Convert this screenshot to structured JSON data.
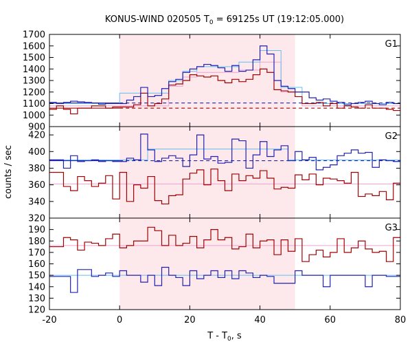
{
  "chart_data": {
    "type": "line",
    "title_main": "KONUS-WIND 020505 T",
    "title_sub": "0",
    "title_rest": " = 69125s UT (19:12:05.000)",
    "xlabel_main": "T - T",
    "xlabel_sub": "0",
    "xlabel_rest": ", s",
    "ylabel": "counts / sec",
    "xlim": [
      -20,
      80
    ],
    "xticks": [
      "-20",
      "0",
      "20",
      "40",
      "60",
      "80"
    ],
    "highlight_x": [
      0,
      50
    ],
    "colors": {
      "red": "#a00000",
      "blue": "#2020b0",
      "cyan": "#60c0f0",
      "pink": "#f0a0d0",
      "shade": "#fde8ec"
    },
    "panels": [
      {
        "label": "G1",
        "ylim": [
          900,
          1700
        ],
        "yticks": [
          "900",
          "1000",
          "1100",
          "1200",
          "1300",
          "1400",
          "1500",
          "1600",
          "1700"
        ],
        "bin_edges": [
          -20,
          -18,
          -16,
          -14,
          -12,
          -10,
          -8,
          -6,
          -4,
          -2,
          0,
          2,
          4,
          6,
          8,
          10,
          12,
          14,
          16,
          18,
          20,
          22,
          24,
          26,
          28,
          30,
          32,
          34,
          36,
          38,
          40,
          42,
          44,
          46,
          48,
          50,
          52,
          54,
          56,
          58,
          60,
          62,
          64,
          66,
          68,
          70,
          72,
          74,
          76,
          78,
          80
        ],
        "series": [
          {
            "color": "blue",
            "values": [
              1110,
              1100,
              1110,
              1120,
              1115,
              1110,
              1105,
              1095,
              1100,
              1100,
              1100,
              1130,
              1160,
              1240,
              1160,
              1170,
              1230,
              1290,
              1310,
              1370,
              1400,
              1420,
              1440,
              1430,
              1410,
              1380,
              1430,
              1380,
              1390,
              1480,
              1600,
              1530,
              1300,
              1250,
              1230,
              1200,
              1200,
              1150,
              1130,
              1140,
              1120,
              1110,
              1090,
              1100,
              1110,
              1120,
              1100,
              1090,
              1110,
              1100
            ]
          },
          {
            "color": "red",
            "values": [
              1050,
              1080,
              1050,
              1010,
              1060,
              1060,
              1080,
              1080,
              1060,
              1070,
              1070,
              1070,
              1090,
              1190,
              1080,
              1100,
              1140,
              1260,
              1270,
              1300,
              1350,
              1340,
              1330,
              1340,
              1300,
              1280,
              1310,
              1290,
              1310,
              1350,
              1400,
              1370,
              1220,
              1210,
              1200,
              1160,
              1100,
              1100,
              1110,
              1080,
              1100,
              1060,
              1080,
              1070,
              1060,
              1090,
              1060,
              1060,
              1050,
              1040
            ]
          },
          {
            "color": "cyan",
            "values": [
              1100,
              1100,
              1100,
              1100,
              1100,
              1100,
              1100,
              1100,
              1100,
              1100,
              1190,
              1190,
              1190,
              1190,
              1190,
              1190,
              1190,
              1300,
              1300,
              1380,
              1380,
              1420,
              1420,
              1420,
              1420,
              1420,
              1420,
              1460,
              1460,
              1460,
              1560,
              1560,
              1560,
              1240,
              1240,
              1240,
              1100,
              1100,
              1100,
              1100,
              1100,
              1100,
              1100,
              1100,
              1100,
              1100,
              1100,
              1100,
              1100,
              1100
            ]
          },
          {
            "color": "pink",
            "values": [
              1080,
              1080,
              1080,
              1080,
              1080,
              1080,
              1080,
              1080,
              1080,
              1080,
              1080,
              1080,
              1080,
              1080,
              1080,
              1080,
              1080,
              1250,
              1250,
              1330,
              1330,
              1370,
              1370,
              1370,
              1370,
              1370,
              1370,
              1390,
              1390,
              1390,
              1460,
              1460,
              1460,
              1200,
              1200,
              1200,
              1080,
              1080,
              1080,
              1080,
              1080,
              1080,
              1080,
              1080,
              1080,
              1080,
              1080,
              1080,
              1080,
              1080
            ]
          }
        ],
        "backgrounds": [
          {
            "color": "blue",
            "value": 1105,
            "dashed_from": 0
          },
          {
            "color": "red",
            "value": 1060,
            "dashed_from": 0
          }
        ]
      },
      {
        "label": "G2",
        "ylim": [
          320,
          430
        ],
        "yticks": [
          "320",
          "340",
          "360",
          "380",
          "400",
          "420"
        ],
        "bin_edges": [
          -20,
          -18,
          -16,
          -14,
          -12,
          -10,
          -8,
          -6,
          -4,
          -2,
          0,
          2,
          4,
          6,
          8,
          10,
          12,
          14,
          16,
          18,
          20,
          22,
          24,
          26,
          28,
          30,
          32,
          34,
          36,
          38,
          40,
          42,
          44,
          46,
          48,
          50,
          52,
          54,
          56,
          58,
          60,
          62,
          64,
          66,
          68,
          70,
          72,
          74,
          76,
          78,
          80
        ],
        "series": [
          {
            "color": "blue",
            "values": [
              390,
              390,
              380,
              395,
              388,
              389,
              390,
              388,
              389,
              388,
              388,
              392,
              390,
              421,
              402,
              388,
              392,
              395,
              392,
              382,
              396,
              420,
              391,
              394,
              386,
              387,
              415,
              413,
              380,
              396,
              412,
              394,
              402,
              407,
              389,
              400,
              390,
              393,
              378,
              381,
              384,
              395,
              398,
              402,
              398,
              399,
              381,
              390,
              389,
              388
            ]
          },
          {
            "color": "red",
            "values": [
              375,
              375,
              358,
              353,
              370,
              365,
              358,
              362,
              371,
              343,
              375,
              340,
              360,
              356,
              370,
              341,
              337,
              347,
              348,
              367,
              374,
              378,
              360,
              379,
              365,
              353,
              373,
              365,
              371,
              368,
              377,
              368,
              355,
              357,
              356,
              372,
              366,
              373,
              360,
              368,
              367,
              365,
              362,
              375,
              346,
              349,
              347,
              352,
              342,
              362
            ]
          },
          {
            "color": "cyan",
            "values": [
              390,
              390,
              390,
              390,
              390,
              390,
              390,
              390,
              390,
              390,
              390,
              390,
              390,
              390,
              403,
              403,
              403,
              403,
              403,
              403,
              403,
              403,
              403,
              403,
              403,
              403,
              403,
              403,
              403,
              403,
              403,
              403,
              403,
              403,
              390,
              390,
              390,
              390,
              390,
              390,
              390,
              390,
              390,
              390,
              390,
              390,
              390,
              390,
              390,
              390
            ]
          },
          {
            "color": "pink",
            "values": [
              361,
              361,
              361,
              361,
              361,
              361,
              361,
              361,
              361,
              361,
              361,
              361,
              361,
              361,
              361,
              361,
              361,
              361,
              361,
              361,
              361,
              361,
              361,
              361,
              361,
              361,
              361,
              361,
              361,
              361,
              361,
              361,
              361,
              361,
              361,
              361,
              361,
              361,
              361,
              361,
              361,
              361,
              361,
              361,
              361,
              361,
              361,
              361,
              361,
              361
            ]
          }
        ],
        "backgrounds": [
          {
            "color": "blue",
            "value": 389,
            "dashed_from": 0
          }
        ]
      },
      {
        "label": "G3",
        "ylim": [
          120,
          200
        ],
        "yticks": [
          "120",
          "130",
          "140",
          "150",
          "160",
          "170",
          "180",
          "190"
        ],
        "bin_edges": [
          -20,
          -18,
          -16,
          -14,
          -12,
          -10,
          -8,
          -6,
          -4,
          -2,
          0,
          2,
          4,
          6,
          8,
          10,
          12,
          14,
          16,
          18,
          20,
          22,
          24,
          26,
          28,
          30,
          32,
          34,
          36,
          38,
          40,
          42,
          44,
          46,
          48,
          50,
          52,
          54,
          56,
          58,
          60,
          62,
          64,
          66,
          68,
          70,
          72,
          74,
          76,
          78,
          80
        ],
        "series": [
          {
            "color": "red",
            "values": [
              175,
              175,
              183,
              181,
              172,
              179,
              178,
              176,
              182,
              186,
              174,
              176,
              180,
              180,
              192,
              189,
              176,
              185,
              176,
              178,
              184,
              174,
              181,
              190,
              181,
              183,
              173,
              175,
              186,
              174,
              180,
              181,
              168,
              181,
              171,
              182,
              162,
              168,
              172,
              166,
              170,
              182,
              170,
              174,
              180,
              173,
              170,
              171,
              162,
              183
            ]
          },
          {
            "color": "blue",
            "values": [
              149,
              149,
              149,
              135,
              155,
              155,
              149,
              150,
              152,
              149,
              154,
              150,
              150,
              144,
              150,
              141,
              157,
              150,
              148,
              141,
              154,
              147,
              150,
              154,
              148,
              154,
              147,
              154,
              152,
              148,
              150,
              149,
              143,
              143,
              143,
              154,
              150,
              150,
              150,
              140,
              150,
              150,
              150,
              150,
              150,
              140,
              150,
              150,
              149,
              149
            ]
          },
          {
            "color": "cyan",
            "values": [
              150,
              150,
              150,
              150,
              150,
              150,
              150,
              150,
              150,
              150,
              150,
              150,
              150,
              150,
              150,
              150,
              150,
              150,
              150,
              150,
              150,
              150,
              150,
              150,
              150,
              150,
              150,
              150,
              150,
              150,
              150,
              150,
              150,
              150,
              150,
              150,
              150,
              150,
              150,
              150,
              150,
              150,
              150,
              150,
              150,
              150,
              150,
              150,
              150,
              150
            ]
          },
          {
            "color": "pink",
            "values": [
              176,
              176,
              176,
              176,
              176,
              176,
              176,
              176,
              176,
              176,
              176,
              176,
              176,
              176,
              176,
              176,
              176,
              176,
              176,
              176,
              176,
              176,
              176,
              176,
              176,
              176,
              176,
              176,
              176,
              176,
              176,
              176,
              176,
              176,
              176,
              176,
              176,
              176,
              176,
              176,
              176,
              176,
              176,
              176,
              176,
              176,
              176,
              176,
              176,
              176
            ]
          }
        ],
        "backgrounds": []
      }
    ]
  }
}
